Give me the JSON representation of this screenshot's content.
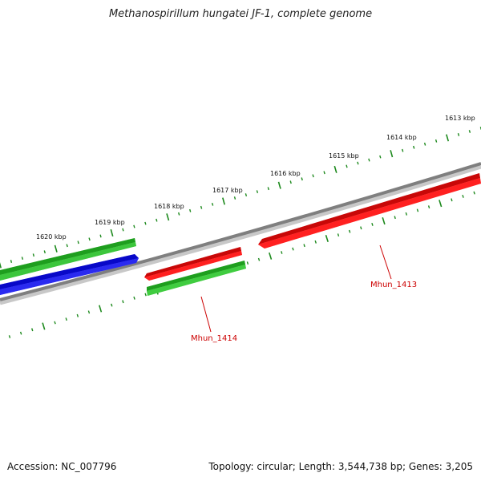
{
  "title": "Methanospirillum hungatei JF-1, complete genome",
  "footer": {
    "accession": "Accession: NC_007796",
    "summary": "Topology: circular; Length: 3,544,738 bp; Genes: 3,205"
  },
  "colors": {
    "backbone": "#7f7f7f",
    "tick": "#1e8a1e",
    "gene_green": "#2fbf2f",
    "gene_blue": "#1010e0",
    "gene_red": "#ee1010",
    "label_red": "#cc0000"
  },
  "scale": {
    "unit": "kbp",
    "labels": [
      "1613 kbp",
      "1614 kbp",
      "1615 kbp",
      "1616 kbp",
      "1617 kbp",
      "1618 kbp",
      "1619 kbp",
      "1620 kbp"
    ]
  },
  "gene_labels": {
    "mhun_1413": "Mhun_1413",
    "mhun_1414": "Mhun_1414"
  }
}
